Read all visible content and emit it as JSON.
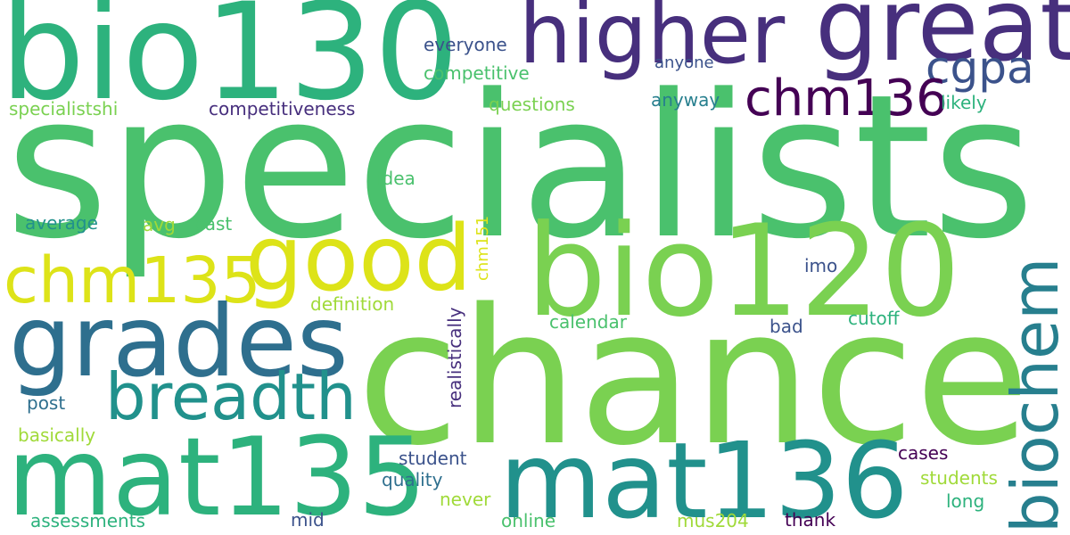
{
  "words": {
    "specialists": "specialists",
    "chance": "chance",
    "bio130": "bio130",
    "bio120": "bio120",
    "mat135": "mat135",
    "mat136": "mat136",
    "higher": "higher",
    "great": "great",
    "grades": "grades",
    "good": "good",
    "chm135": "chm135",
    "biochem": "biochem",
    "breadth": "breadth",
    "chm136": "chm136",
    "cgpa": "cgpa",
    "everyone": "everyone",
    "anyone": "anyone",
    "competitive": "competitive",
    "specialistshi": "specialistshi",
    "competitiveness": "competitiveness",
    "questions": "questions",
    "anyway": "anyway",
    "likely": "likely",
    "idea": "idea",
    "average": "average",
    "avg": "avg",
    "past": "past",
    "chm151": "chm151",
    "imo": "imo",
    "realistically": "realistically",
    "definition": "definition",
    "calendar": "calendar",
    "cutoff": "cutoff",
    "bad": "bad",
    "post": "post",
    "basically": "basically",
    "student": "student",
    "cases": "cases",
    "quality": "quality",
    "students": "students",
    "never": "never",
    "long": "long",
    "assessments": "assessments",
    "mid": "mid",
    "online": "online",
    "mus204": "mus204",
    "thank": "thank"
  },
  "colors": {
    "yellow": "#dde318",
    "yellow_green": "#a0da39",
    "light_green": "#7ad151",
    "green": "#4ac16d",
    "sea_green": "#2db27d",
    "teal_green": "#1fa187",
    "teal": "#21918c",
    "blue_teal": "#277f8e",
    "steel_blue": "#2e6f8e",
    "slate_blue": "#3b528b",
    "indigo": "#472f7d",
    "deep_purple": "#440154"
  }
}
